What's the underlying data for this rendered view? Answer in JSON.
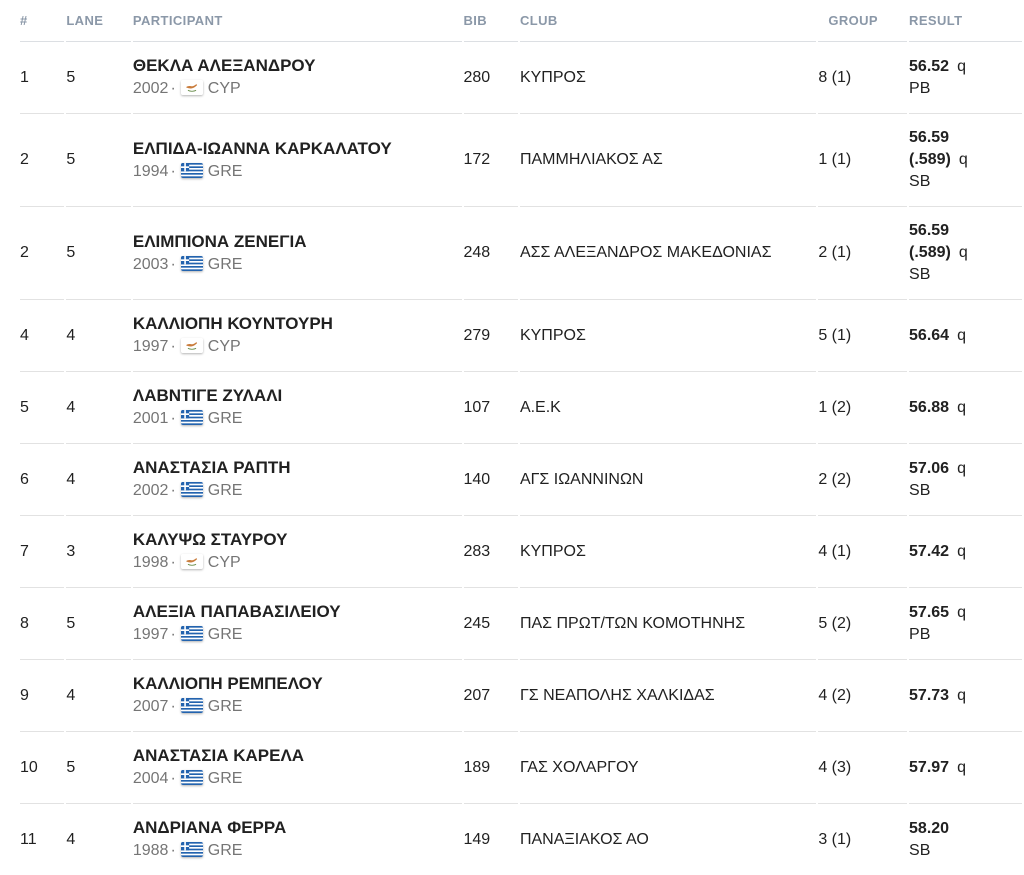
{
  "table": {
    "meta_separator": "·",
    "columns": [
      {
        "key": "place",
        "label": "#"
      },
      {
        "key": "lane",
        "label": "LANE"
      },
      {
        "key": "participant",
        "label": "PARTICIPANT"
      },
      {
        "key": "bib",
        "label": "BIB"
      },
      {
        "key": "club",
        "label": "CLUB"
      },
      {
        "key": "group",
        "label": "GROUP"
      },
      {
        "key": "result",
        "label": "RESULT"
      }
    ],
    "rows": [
      {
        "place": "1",
        "lane": "5",
        "name": "ΘΕΚΛΑ ΑΛΕΞΑΝΔΡΟΥ",
        "year": "2002",
        "country": "CYP",
        "flag_icon": "cyprus-flag-icon",
        "bib": "280",
        "club": "ΚΥΠΡΟΣ",
        "group": "8 (1)",
        "result": "56.52",
        "qualifier": "q",
        "note": "PB"
      },
      {
        "place": "2",
        "lane": "5",
        "name": "ΕΛΠΙΔΑ-ΙΩΑΝΝΑ ΚΑΡΚΑΛΑΤΟΥ",
        "year": "1994",
        "country": "GRE",
        "flag_icon": "greece-flag-icon",
        "bib": "172",
        "club": "ΠΑΜΜΗΛΙΑΚΟΣ ΑΣ",
        "group": "1 (1)",
        "result": "56.59 (.589)",
        "qualifier": "q",
        "note": "SB"
      },
      {
        "place": "2",
        "lane": "5",
        "name": "ΕΛΙΜΠΙΟΝΑ ΖΕΝΕΓΙΑ",
        "year": "2003",
        "country": "GRE",
        "flag_icon": "greece-flag-icon",
        "bib": "248",
        "club": "ΑΣΣ ΑΛΕΞΑΝΔΡΟΣ ΜΑΚΕΔΟΝΙΑΣ",
        "group": "2 (1)",
        "result": "56.59 (.589)",
        "qualifier": "q",
        "note": "SB"
      },
      {
        "place": "4",
        "lane": "4",
        "name": "ΚΑΛΛΙΟΠΗ ΚΟΥΝΤΟΥΡΗ",
        "year": "1997",
        "country": "CYP",
        "flag_icon": "cyprus-flag-icon",
        "bib": "279",
        "club": "ΚΥΠΡΟΣ",
        "group": "5 (1)",
        "result": "56.64",
        "qualifier": "q",
        "note": ""
      },
      {
        "place": "5",
        "lane": "4",
        "name": "ΛΑΒΝΤΙΓΕ ΖΥΛΑΛΙ",
        "year": "2001",
        "country": "GRE",
        "flag_icon": "greece-flag-icon",
        "bib": "107",
        "club": "Α.Ε.Κ",
        "group": "1 (2)",
        "result": "56.88",
        "qualifier": "q",
        "note": ""
      },
      {
        "place": "6",
        "lane": "4",
        "name": "ΑΝΑΣΤΑΣΙΑ ΡΑΠΤΗ",
        "year": "2002",
        "country": "GRE",
        "flag_icon": "greece-flag-icon",
        "bib": "140",
        "club": "ΑΓΣ ΙΩΑΝΝΙΝΩΝ",
        "group": "2 (2)",
        "result": "57.06",
        "qualifier": "q",
        "note": "SB"
      },
      {
        "place": "7",
        "lane": "3",
        "name": "ΚΑΛΥΨΩ ΣΤΑΥΡΟΥ",
        "year": "1998",
        "country": "CYP",
        "flag_icon": "cyprus-flag-icon",
        "bib": "283",
        "club": "ΚΥΠΡΟΣ",
        "group": "4 (1)",
        "result": "57.42",
        "qualifier": "q",
        "note": ""
      },
      {
        "place": "8",
        "lane": "5",
        "name": "ΑΛΕΞΙΑ ΠΑΠΑΒΑΣΙΛΕΙΟΥ",
        "year": "1997",
        "country": "GRE",
        "flag_icon": "greece-flag-icon",
        "bib": "245",
        "club": "ΠΑΣ ΠΡΩΤ/ΤΩΝ ΚΟΜΟΤΗΝΗΣ",
        "group": "5 (2)",
        "result": "57.65",
        "qualifier": "q",
        "note": "PB"
      },
      {
        "place": "9",
        "lane": "4",
        "name": "ΚΑΛΛΙΟΠΗ ΡΕΜΠΕΛΟΥ",
        "year": "2007",
        "country": "GRE",
        "flag_icon": "greece-flag-icon",
        "bib": "207",
        "club": "ΓΣ ΝΕΑΠΟΛΗΣ ΧΑΛΚΙΔΑΣ",
        "group": "4 (2)",
        "result": "57.73",
        "qualifier": "q",
        "note": ""
      },
      {
        "place": "10",
        "lane": "5",
        "name": "ΑΝΑΣΤΑΣΙΑ ΚΑΡΕΛΑ",
        "year": "2004",
        "country": "GRE",
        "flag_icon": "greece-flag-icon",
        "bib": "189",
        "club": "ΓΑΣ ΧΟΛΑΡΓΟΥ",
        "group": "4 (3)",
        "result": "57.97",
        "qualifier": "q",
        "note": ""
      },
      {
        "place": "11",
        "lane": "4",
        "name": "ΑΝΔΡΙΑΝΑ ΦΕΡΡΑ",
        "year": "1988",
        "country": "GRE",
        "flag_icon": "greece-flag-icon",
        "bib": "149",
        "club": "ΠΑΝΑΞΙΑΚΟΣ ΑΟ",
        "group": "3 (1)",
        "result": "58.20",
        "qualifier": "",
        "note": "SB"
      }
    ]
  },
  "colors": {
    "header_text": "#8b98a8",
    "body_text": "#212121",
    "secondary_text": "#757575",
    "row_divider": "#e2e2e2",
    "greece_flag_blue": "#2363ae",
    "cyprus_flag_copper": "#c97c3c",
    "cyprus_flag_green": "#6c8f4e"
  }
}
